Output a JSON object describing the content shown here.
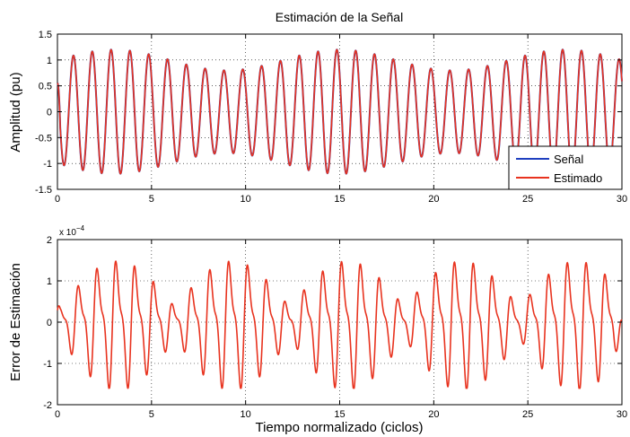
{
  "chart_data": [
    {
      "type": "line",
      "title": "Estimación de la Señal",
      "xlabel": "",
      "ylabel": "Amplitud (pu)",
      "xlim": [
        0,
        30
      ],
      "ylim": [
        -1.5,
        1.5
      ],
      "xticks": [
        "0",
        "5",
        "10",
        "15",
        "20",
        "25",
        "30"
      ],
      "yticks": [
        "-1.5",
        "-1",
        "-0.5",
        "0",
        "0.5",
        "1",
        "1.5"
      ],
      "grid": true,
      "legend_position": "bottom-right",
      "legend": [
        "Señal",
        "Estimado"
      ],
      "series": [
        {
          "name": "Señal",
          "color": "#1f3fbf",
          "signal": {
            "base_amplitude": 1.0,
            "modulation": 0.2,
            "cycle": 1.0,
            "beat_period": 12
          }
        },
        {
          "name": "Estimado",
          "color": "#e8331f",
          "signal": {
            "base_amplitude": 1.0,
            "modulation": 0.2,
            "cycle": 1.0,
            "beat_period": 12
          }
        }
      ]
    },
    {
      "type": "line",
      "title": "",
      "xlabel": "Tiempo normalizado (ciclos)",
      "ylabel": "Error de Estimación",
      "xlim": [
        0,
        30
      ],
      "ylim": [
        -2,
        2
      ],
      "xticks": [
        "0",
        "5",
        "10",
        "15",
        "20",
        "25",
        "30"
      ],
      "yticks": [
        "-2",
        "-1",
        "0",
        "1",
        "2"
      ],
      "multiplier": {
        "base": "x 10",
        "exp": "−4"
      },
      "grid": true,
      "series": [
        {
          "color": "#e8331f",
          "peak_x": 0.8,
          "peak_y": 1.7,
          "beat_period": 12
        }
      ]
    }
  ]
}
